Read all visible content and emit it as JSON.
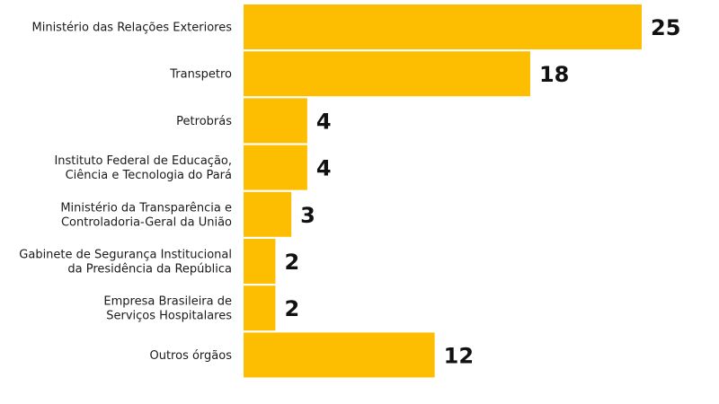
{
  "chart_data": {
    "type": "bar",
    "orientation": "horizontal",
    "categories": [
      [
        "Ministério das Relações Exteriores"
      ],
      [
        "Transpetro"
      ],
      [
        "Petrobrás"
      ],
      [
        "Instituto Federal de Educação,",
        "Ciência e Tecnologia do Pará"
      ],
      [
        "Ministério da Transparência e",
        "Controladoria-Geral da União"
      ],
      [
        "Gabinete de Segurança Institucional",
        "da Presidência da República"
      ],
      [
        "Empresa Brasileira de",
        "Serviços Hospitalares"
      ],
      [
        "Outros órgãos"
      ]
    ],
    "values": [
      25,
      18,
      4,
      4,
      3,
      2,
      2,
      12
    ],
    "value_labels": [
      "25",
      "18",
      "4",
      "4",
      "3",
      "2",
      "2",
      "12"
    ],
    "xlim": [
      0,
      25
    ],
    "grid": false,
    "legend": "none",
    "colors": {
      "bar": "#FDBE02",
      "label": "#1a1a1a",
      "value": "#111111"
    }
  }
}
